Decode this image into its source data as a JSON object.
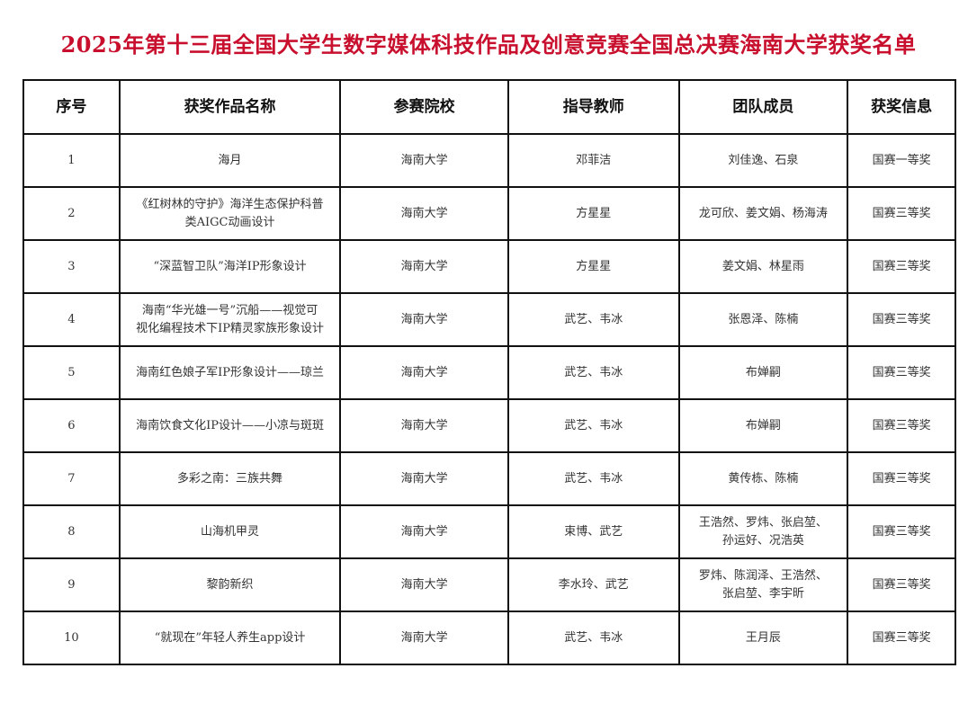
{
  "title": "2025年第十三届全国大学生数字媒体科技作品及创意竞赛全国总决赛海南大学获奖名单",
  "headers": [
    "序号",
    "获奖作品名称",
    "参赛院校",
    "指导教师",
    "团队成员",
    "获奖信息"
  ],
  "rows": [
    [
      "1",
      "海月",
      "海南大学",
      "邓菲洁",
      "刘佳逸、石泉",
      "国赛一等奖"
    ],
    [
      "2",
      "《红树林的守护》海洋生态保护科普\n类AIGC动画设计",
      "海南大学",
      "方星星",
      "龙可欣、姜文娟、杨海涛",
      "国赛三等奖"
    ],
    [
      "3",
      "“深蓝智卫队”海洋IP形象设计",
      "海南大学",
      "方星星",
      "姜文娟、林星雨",
      "国赛三等奖"
    ],
    [
      "4",
      "海南“华光雄一号”沉船——视觉可\n视化编程技术下IP精灵家族形象设计",
      "海南大学",
      "武艺、韦冰",
      "张恩泽、陈楠",
      "国赛三等奖"
    ],
    [
      "5",
      "海南红色娘子军IP形象设计——琼兰",
      "海南大学",
      "武艺、韦冰",
      "布婵嗣",
      "国赛三等奖"
    ],
    [
      "6",
      "海南饮食文化IP设计——小凉与斑斑",
      "海南大学",
      "武艺、韦冰",
      "布婵嗣",
      "国赛三等奖"
    ],
    [
      "7",
      "多彩之南：三族共舞",
      "海南大学",
      "武艺、韦冰",
      "黄传栋、陈楠",
      "国赛三等奖"
    ],
    [
      "8",
      "山海机甲灵",
      "海南大学",
      "束博、武艺",
      "王浩然、罗炜、张启堃、\n孙运好、况浩英",
      "国赛三等奖"
    ],
    [
      "9",
      "黎韵新织",
      "海南大学",
      "李水玲、武艺",
      "罗炜、陈润泽、王浩然、\n张启堃、李宇昕",
      "国赛三等奖"
    ],
    [
      "10",
      "“就现在”年轻人养生app设计",
      "海南大学",
      "武艺、韦冰",
      "王月辰",
      "国赛三等奖"
    ]
  ]
}
